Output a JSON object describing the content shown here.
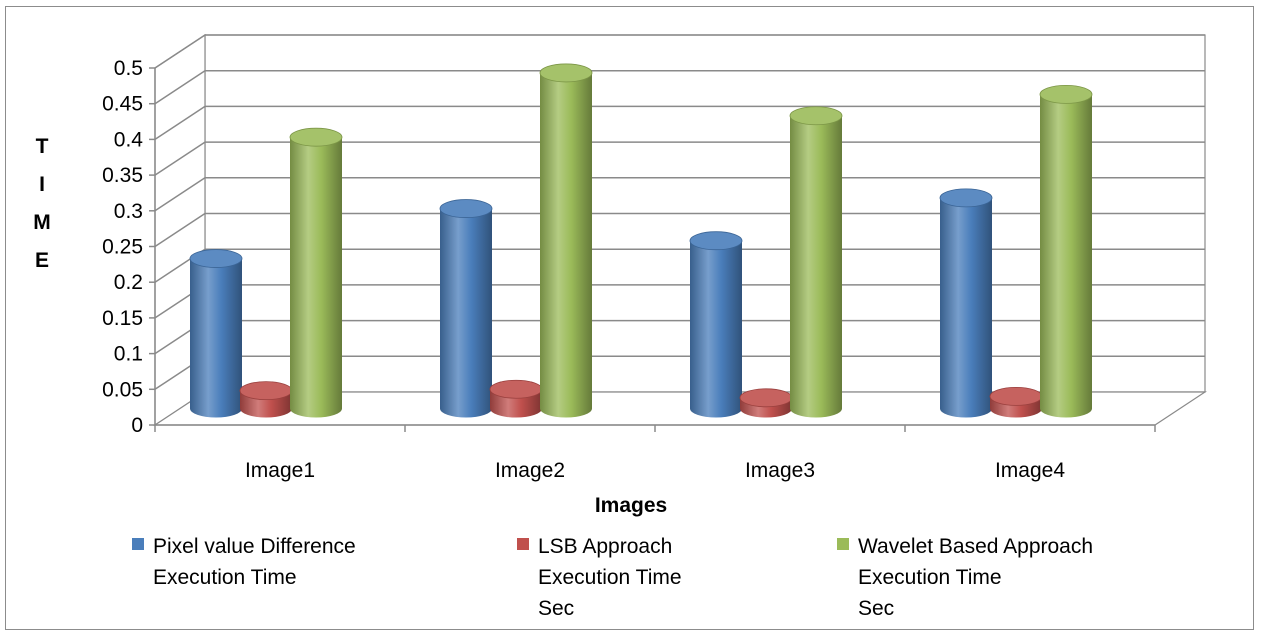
{
  "chart_data": {
    "type": "bar",
    "title": "",
    "xlabel": "Images",
    "ylabel": "T I M E",
    "ylim": [
      0,
      0.5
    ],
    "yticks": [
      "0",
      "0.05",
      "0.1",
      "0.15",
      "0.2",
      "0.25",
      "0.3",
      "0.35",
      "0.4",
      "0.45",
      "0.5"
    ],
    "categories": [
      "Image1",
      "Image2",
      "Image3",
      "Image4"
    ],
    "series": [
      {
        "name": "Pixel value Difference Execution Time",
        "legend_lines": [
          "Pixel value Difference",
          "Execution Time"
        ],
        "color": "#4a7ebb",
        "values": [
          0.21,
          0.28,
          0.235,
          0.295
        ]
      },
      {
        "name": "LSB Approach Execution Time Sec",
        "legend_lines": [
          "LSB Approach",
          "Execution Time",
          "Sec"
        ],
        "color": "#c0504d",
        "values": [
          0.025,
          0.027,
          0.015,
          0.017
        ]
      },
      {
        "name": "Wavelet Based Approach Execution Time Sec",
        "legend_lines": [
          "Wavelet Based Approach",
          "Execution Time",
          "Sec"
        ],
        "color": "#9bbb59",
        "values": [
          0.38,
          0.47,
          0.41,
          0.44
        ]
      }
    ],
    "grid": true,
    "legend_position": "bottom"
  }
}
